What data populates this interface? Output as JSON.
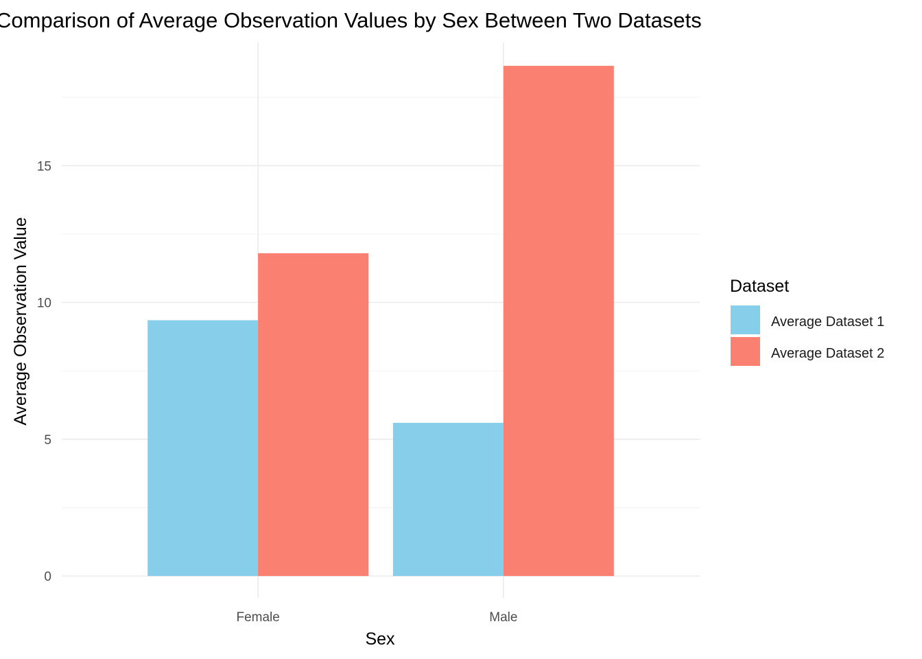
{
  "chart_data": {
    "type": "bar",
    "title": "Comparison of Average Observation Values by Sex Between Two Datasets",
    "xlabel": "Sex",
    "ylabel": "Average Observation Value",
    "categories": [
      "Female",
      "Male"
    ],
    "series": [
      {
        "name": "Average Dataset 1",
        "values": [
          9.35,
          5.6
        ],
        "color": "#87CEEB"
      },
      {
        "name": "Average Dataset 2",
        "values": [
          11.8,
          18.65
        ],
        "color": "#FA8072"
      }
    ],
    "ylim": [
      -0.8,
      19.5
    ],
    "yticks": [
      0,
      5,
      10,
      15
    ],
    "yticks_minor": [
      2.5,
      7.5,
      12.5,
      17.5
    ],
    "grid": true,
    "legend": {
      "title": "Dataset",
      "placement": "right"
    }
  }
}
